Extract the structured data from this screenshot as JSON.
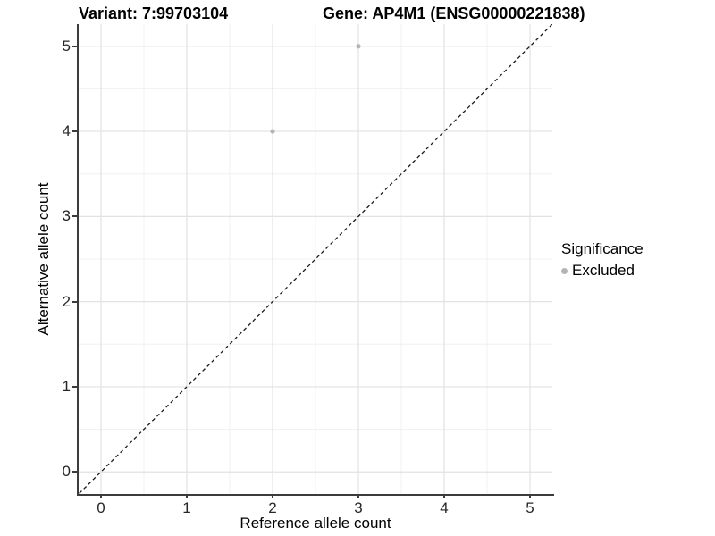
{
  "titles": {
    "left": "Variant: 7:99703104",
    "right": "Gene: AP4M1 (ENSG00000221838)"
  },
  "colors": {
    "background": "#ffffff",
    "axis_line": "#3c3c3c",
    "tick_label": "#262626",
    "grid_major": "#e2e2e2",
    "grid_minor": "#f0f0f0",
    "identity_line": "#1a1a1a",
    "excluded_point": "#b5b5b5"
  },
  "chart_data": {
    "type": "scatter",
    "title": "Variant: 7:99703104    Gene: AP4M1 (ENSG00000221838)",
    "xlabel": "Reference allele count",
    "ylabel": "Alternative allele count",
    "xlim": [
      -0.26,
      5.26
    ],
    "ylim": [
      -0.26,
      5.26
    ],
    "x_ticks": [
      0,
      1,
      2,
      3,
      4,
      5
    ],
    "y_ticks": [
      0,
      1,
      2,
      3,
      4,
      5
    ],
    "grid": {
      "major": true,
      "minor": true,
      "minor_step": 0.5
    },
    "identity_line": {
      "slope": 1,
      "intercept": 0,
      "style": "dashed"
    },
    "series": [
      {
        "name": "Excluded",
        "color": "#b5b5b5",
        "points": [
          {
            "x": 2,
            "y": 4
          },
          {
            "x": 3,
            "y": 5
          }
        ]
      }
    ],
    "legend": {
      "title": "Significance",
      "position": "right",
      "items": [
        {
          "label": "Excluded",
          "color": "#b5b5b5"
        }
      ]
    }
  }
}
